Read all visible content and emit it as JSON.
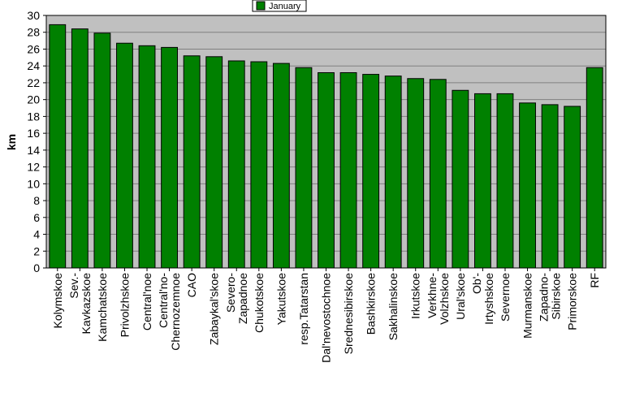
{
  "colors": {
    "plot_background": "#c0c0c0",
    "bar_fill": "#008000",
    "bar_stroke": "#000000",
    "gridline": "#808080",
    "page_background": "#ffffff"
  },
  "chart_data": {
    "type": "bar",
    "title": "",
    "xlabel": "",
    "ylabel": "km",
    "ylim": [
      0,
      30
    ],
    "yticks": [
      0,
      2,
      4,
      6,
      8,
      10,
      12,
      14,
      16,
      18,
      20,
      22,
      24,
      26,
      28,
      30
    ],
    "grid": true,
    "legend_position": "top-center",
    "categories": [
      [
        "Kolymskoe"
      ],
      [
        "Sev.-",
        "Kavkazskoe"
      ],
      [
        "Kamchatskoe"
      ],
      [
        "Privolzhskoe"
      ],
      [
        "Central'noe"
      ],
      [
        "Central'no-",
        "Chernozemnoe"
      ],
      [
        "CAO"
      ],
      [
        "Zabaykal'skoe"
      ],
      [
        "Severo-",
        "Zapadnoe"
      ],
      [
        "Chukotskoe"
      ],
      [
        "Yakutskoe"
      ],
      [
        "resp.Tatarstan"
      ],
      [
        "Dal'nevostochnoe"
      ],
      [
        "Srednesibirskoe"
      ],
      [
        "Bashkirskoe"
      ],
      [
        "Sakhalinskoe"
      ],
      [
        "Irkutskoe"
      ],
      [
        "Verkhne-",
        "Volzhskoe"
      ],
      [
        "Ural'skoe"
      ],
      [
        "Ob'-",
        "Irtyshskoe"
      ],
      [
        "Severnoe"
      ],
      [
        "Murmanskoe"
      ],
      [
        "Zapadno-",
        "Sibirskoe"
      ],
      [
        "Primorskoe"
      ],
      [
        "RF"
      ]
    ],
    "series": [
      {
        "name": "January",
        "values": [
          28.9,
          28.4,
          27.9,
          26.7,
          26.4,
          26.2,
          25.2,
          25.1,
          24.6,
          24.5,
          24.3,
          23.8,
          23.2,
          23.2,
          23.0,
          22.8,
          22.5,
          22.4,
          21.1,
          20.7,
          20.7,
          19.6,
          19.4,
          19.2,
          23.8
        ]
      }
    ]
  }
}
